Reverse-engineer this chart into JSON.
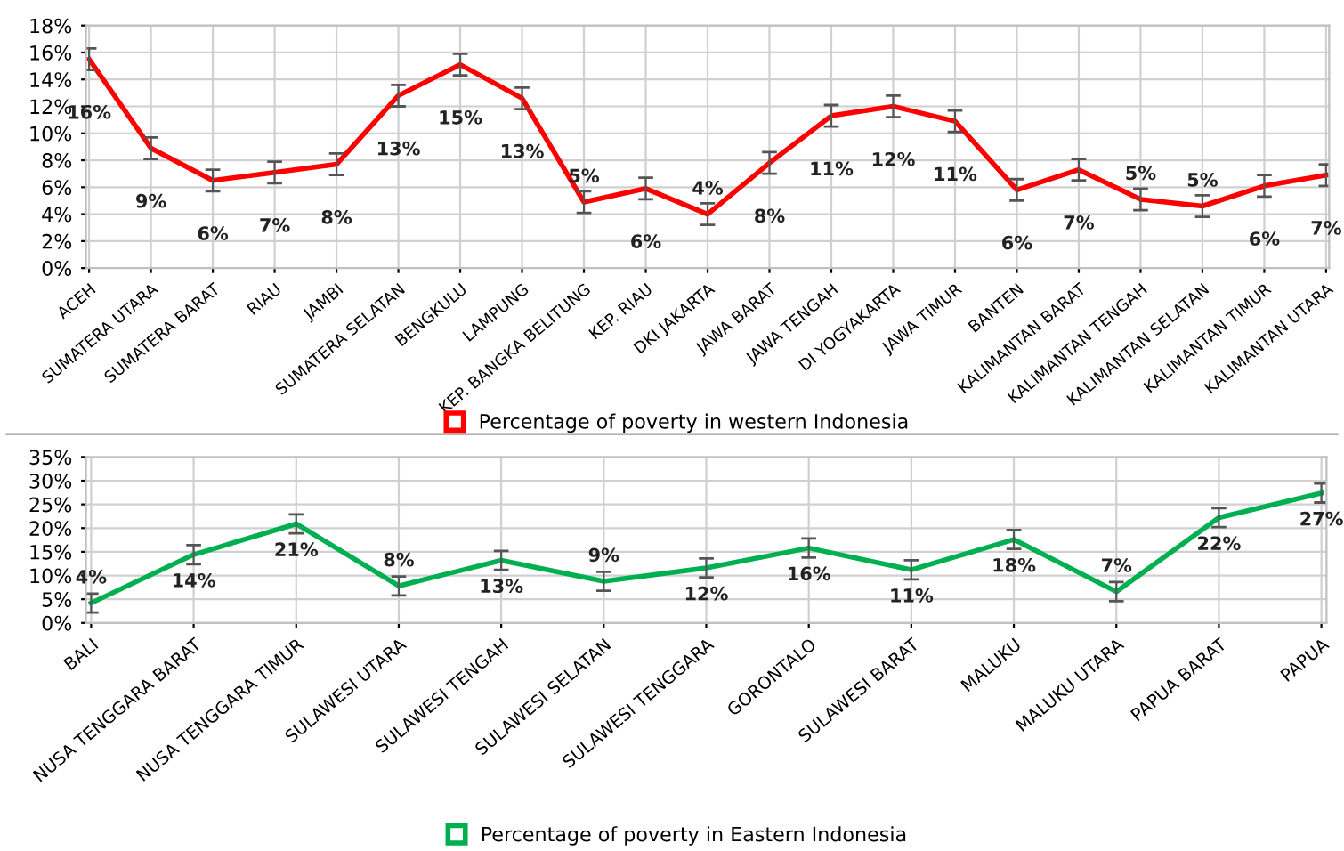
{
  "chart_data": [
    {
      "type": "line",
      "categories": [
        "ACEH",
        "SUMATERA UTARA",
        "SUMATERA BARAT",
        "RIAU",
        "JAMBI",
        "SUMATERA SELATAN",
        "BENGKULU",
        "LAMPUNG",
        "KEP. BANGKA BELITUNG",
        "KEP. RIAU",
        "DKI JAKARTA",
        "JAWA BARAT",
        "JAWA TENGAH",
        "DI YOGYAKARTA",
        "JAWA TIMUR",
        "BANTEN",
        "KALIMANTAN BARAT",
        "KALIMANTAN TENGAH",
        "KALIMANTAN SELATAN",
        "KALIMANTAN TIMUR",
        "KALIMANTAN UTARA"
      ],
      "series": [
        {
          "name": "Percentage of poverty in western Indonesia",
          "color": "#ff0000",
          "values": [
            15.5,
            8.9,
            6.5,
            7.1,
            7.7,
            12.8,
            15.1,
            12.6,
            4.9,
            5.9,
            4.0,
            7.8,
            11.3,
            12.0,
            10.9,
            5.8,
            7.3,
            5.1,
            4.6,
            6.1,
            6.9
          ],
          "errors": [
            0.8,
            0.8,
            0.8,
            0.8,
            0.8,
            0.8,
            0.8,
            0.8,
            0.8,
            0.8,
            0.8,
            0.8,
            0.8,
            0.8,
            0.8,
            0.8,
            0.8,
            0.8,
            0.8,
            0.8,
            0.8
          ],
          "value_labels": [
            "16%",
            "9%",
            "6%",
            "7%",
            "8%",
            "13%",
            "15%",
            "13%",
            "5%",
            "6%",
            "4%",
            "8%",
            "11%",
            "12%",
            "11%",
            "6%",
            "7%",
            "5%",
            "5%",
            "6%",
            "7%"
          ]
        }
      ],
      "ylim": [
        0,
        18
      ],
      "yticks": [
        {
          "value": 0,
          "label": "0%"
        },
        {
          "value": 2,
          "label": "2%"
        },
        {
          "value": 4,
          "label": "4%"
        },
        {
          "value": 6,
          "label": "6%"
        },
        {
          "value": 8,
          "label": "8%"
        },
        {
          "value": 10,
          "label": "10%"
        },
        {
          "value": 12,
          "label": "12%"
        },
        {
          "value": 14,
          "label": "14%"
        },
        {
          "value": 16,
          "label": "16%"
        },
        {
          "value": 18,
          "label": "18%"
        }
      ],
      "grid": true,
      "legend": "bottom",
      "marker": "none",
      "line_style": "solid"
    },
    {
      "type": "line",
      "categories": [
        "BALI",
        "NUSA TENGGARA BARAT",
        "NUSA TENGGARA TIMUR",
        "SULAWESI UTARA",
        "SULAWESI TENGAH",
        "SULAWESI SELATAN",
        "SULAWESI TENGGARA",
        "GORONTALO",
        "SULAWESI BARAT",
        "MALUKU",
        "MALUKU UTARA",
        "PAPUA BARAT",
        "PAPUA"
      ],
      "series": [
        {
          "name": "Percentage of poverty in Eastern Indonesia",
          "color": "#00b050",
          "values": [
            4.2,
            14.4,
            20.9,
            7.8,
            13.2,
            8.8,
            11.6,
            15.8,
            11.2,
            17.6,
            6.6,
            22.2,
            27.4
          ],
          "errors": [
            2,
            2,
            2,
            2,
            2,
            2,
            2,
            2,
            2,
            2,
            2,
            2,
            2
          ],
          "value_labels": [
            "4%",
            "14%",
            "21%",
            "8%",
            "13%",
            "9%",
            "12%",
            "16%",
            "11%",
            "18%",
            "7%",
            "22%",
            "27%"
          ]
        }
      ],
      "ylim": [
        0,
        35
      ],
      "yticks": [
        {
          "value": 0,
          "label": "0%"
        },
        {
          "value": 5,
          "label": "5%"
        },
        {
          "value": 10,
          "label": "10%"
        },
        {
          "value": 15,
          "label": "15%"
        },
        {
          "value": 20,
          "label": "20%"
        },
        {
          "value": 25,
          "label": "25%"
        },
        {
          "value": 30,
          "label": "30%"
        },
        {
          "value": 35,
          "label": "35%"
        }
      ],
      "grid": true,
      "legend": "bottom",
      "marker": "none",
      "line_style": "solid"
    }
  ]
}
